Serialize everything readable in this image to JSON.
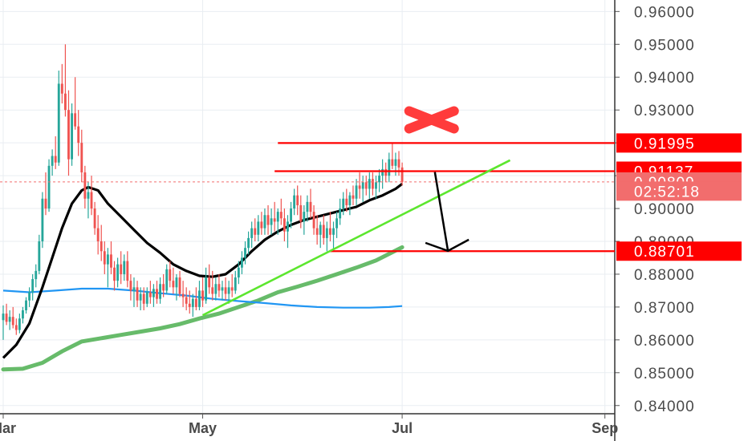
{
  "chart_data": {
    "type": "candlestick",
    "symbol_hidden": true,
    "y_axis": {
      "ticks": [
        "0.96000",
        "0.95000",
        "0.94000",
        "0.93000",
        "0.92000",
        "0.91000",
        "0.90000",
        "0.89000",
        "0.88000",
        "0.87000",
        "0.86000",
        "0.85000",
        "0.84000"
      ],
      "tick_values": [
        0.96,
        0.95,
        0.94,
        0.93,
        0.92,
        0.91,
        0.9,
        0.89,
        0.88,
        0.87,
        0.86,
        0.85,
        0.84
      ],
      "range": [
        0.8375,
        0.9635
      ],
      "side": "right"
    },
    "x_axis": {
      "ticks": [
        "Mar",
        "May",
        "Jul",
        "Sep"
      ],
      "tick_days": [
        0,
        61,
        122,
        184
      ],
      "range_days": [
        0,
        188
      ]
    },
    "grid": true,
    "colors": {
      "up": "#26a69a",
      "down": "#ef5350",
      "ema_black": "#000000",
      "ma_blue": "#2196f3",
      "ma_green": "#4caf50",
      "trendline": "#5ce62e",
      "level_red": "#ff0000",
      "badge_red": "#ff0000",
      "badge_pale": "#f26d6d"
    },
    "price_badges": [
      {
        "label": "0.91995",
        "value": 0.91995,
        "style": "solid"
      },
      {
        "label": "0.91137",
        "value": 0.91137,
        "style": "solid"
      },
      {
        "label": "0.90809",
        "value": 0.90809,
        "style": "pale"
      },
      {
        "label": "02:52:18",
        "value": 0.9053,
        "style": "pale"
      },
      {
        "label": "0.88701",
        "value": 0.88701,
        "style": "solid"
      }
    ],
    "current_price": 0.90809,
    "horizontal_levels": [
      {
        "value": 0.91995,
        "from_day": 84,
        "to_day": 186
      },
      {
        "value": 0.91137,
        "from_day": 83,
        "to_day": 186
      },
      {
        "value": 0.88701,
        "from_day": 100,
        "to_day": 186
      }
    ],
    "trendline": {
      "points": [
        [
          61,
          0.8675
        ],
        [
          155,
          0.9147
        ]
      ]
    },
    "arrow": {
      "from": [
        132,
        0.9111
      ],
      "to": [
        136,
        0.8871
      ]
    },
    "x_marker": {
      "day": 131,
      "value": 0.927
    },
    "ema_black": [
      [
        0,
        0.8545
      ],
      [
        4,
        0.8585
      ],
      [
        8,
        0.865
      ],
      [
        12,
        0.876
      ],
      [
        15,
        0.885
      ],
      [
        18,
        0.894
      ],
      [
        21,
        0.9015
      ],
      [
        24,
        0.9055
      ],
      [
        26,
        0.9065
      ],
      [
        29,
        0.9055
      ],
      [
        32,
        0.9015
      ],
      [
        36,
        0.8975
      ],
      [
        40,
        0.8935
      ],
      [
        44,
        0.8895
      ],
      [
        48,
        0.8865
      ],
      [
        52,
        0.883
      ],
      [
        56,
        0.881
      ],
      [
        60,
        0.8795
      ],
      [
        64,
        0.8792
      ],
      [
        68,
        0.88
      ],
      [
        72,
        0.883
      ],
      [
        76,
        0.887
      ],
      [
        80,
        0.8905
      ],
      [
        84,
        0.893
      ],
      [
        88,
        0.895
      ],
      [
        92,
        0.8965
      ],
      [
        96,
        0.8975
      ],
      [
        100,
        0.8985
      ],
      [
        104,
        0.8995
      ],
      [
        108,
        0.9005
      ],
      [
        112,
        0.9025
      ],
      [
        116,
        0.904
      ],
      [
        120,
        0.906
      ],
      [
        122,
        0.9075
      ]
    ],
    "ma_blue": [
      [
        0,
        0.875
      ],
      [
        8,
        0.8745
      ],
      [
        16,
        0.875
      ],
      [
        24,
        0.8756
      ],
      [
        32,
        0.8756
      ],
      [
        40,
        0.875
      ],
      [
        48,
        0.8742
      ],
      [
        56,
        0.8735
      ],
      [
        64,
        0.8725
      ],
      [
        72,
        0.8718
      ],
      [
        80,
        0.8712
      ],
      [
        88,
        0.8705
      ],
      [
        96,
        0.87
      ],
      [
        104,
        0.8698
      ],
      [
        112,
        0.8698
      ],
      [
        118,
        0.87
      ],
      [
        122,
        0.8703
      ]
    ],
    "ma_green": [
      [
        0,
        0.851
      ],
      [
        6,
        0.8512
      ],
      [
        12,
        0.853
      ],
      [
        18,
        0.8565
      ],
      [
        24,
        0.8595
      ],
      [
        30,
        0.8605
      ],
      [
        36,
        0.8615
      ],
      [
        42,
        0.8625
      ],
      [
        48,
        0.8635
      ],
      [
        54,
        0.8648
      ],
      [
        60,
        0.8665
      ],
      [
        66,
        0.868
      ],
      [
        72,
        0.87
      ],
      [
        78,
        0.872
      ],
      [
        84,
        0.8745
      ],
      [
        90,
        0.8762
      ],
      [
        96,
        0.878
      ],
      [
        102,
        0.88
      ],
      [
        108,
        0.882
      ],
      [
        114,
        0.8842
      ],
      [
        118,
        0.8862
      ],
      [
        122,
        0.8882
      ]
    ],
    "candles": [
      [
        0,
        0.866,
        0.8705,
        0.86,
        0.868
      ],
      [
        1,
        0.868,
        0.871,
        0.8645,
        0.8655
      ],
      [
        2,
        0.8655,
        0.869,
        0.863,
        0.867
      ],
      [
        3,
        0.867,
        0.87,
        0.8635,
        0.8645
      ],
      [
        4,
        0.8645,
        0.8665,
        0.8615,
        0.863
      ],
      [
        5,
        0.863,
        0.868,
        0.862,
        0.8665
      ],
      [
        6,
        0.8665,
        0.87,
        0.865,
        0.869
      ],
      [
        7,
        0.869,
        0.873,
        0.868,
        0.872
      ],
      [
        8,
        0.872,
        0.876,
        0.87,
        0.8745
      ],
      [
        9,
        0.8745,
        0.88,
        0.872,
        0.8785
      ],
      [
        10,
        0.8785,
        0.883,
        0.876,
        0.881
      ],
      [
        11,
        0.881,
        0.892,
        0.88,
        0.89
      ],
      [
        12,
        0.89,
        0.905,
        0.888,
        0.903
      ],
      [
        13,
        0.903,
        0.911,
        0.898,
        0.9
      ],
      [
        14,
        0.9,
        0.915,
        0.899,
        0.913
      ],
      [
        15,
        0.913,
        0.918,
        0.91,
        0.916
      ],
      [
        16,
        0.916,
        0.922,
        0.912,
        0.914
      ],
      [
        17,
        0.914,
        0.942,
        0.913,
        0.938
      ],
      [
        18,
        0.938,
        0.944,
        0.932,
        0.935
      ],
      [
        19,
        0.935,
        0.95,
        0.928,
        0.93
      ],
      [
        20,
        0.93,
        0.936,
        0.91,
        0.915
      ],
      [
        21,
        0.915,
        0.932,
        0.913,
        0.929
      ],
      [
        22,
        0.929,
        0.94,
        0.924,
        0.925
      ],
      [
        23,
        0.925,
        0.93,
        0.916,
        0.92
      ],
      [
        24,
        0.92,
        0.924,
        0.908,
        0.911
      ],
      [
        25,
        0.911,
        0.913,
        0.9,
        0.903
      ],
      [
        26,
        0.903,
        0.908,
        0.897,
        0.905
      ],
      [
        27,
        0.905,
        0.91,
        0.898,
        0.9
      ],
      [
        28,
        0.9,
        0.902,
        0.892,
        0.894
      ],
      [
        29,
        0.894,
        0.898,
        0.886,
        0.89
      ],
      [
        30,
        0.89,
        0.895,
        0.884,
        0.887
      ],
      [
        31,
        0.887,
        0.89,
        0.88,
        0.883
      ],
      [
        32,
        0.883,
        0.888,
        0.876,
        0.886
      ],
      [
        33,
        0.886,
        0.89,
        0.88,
        0.882
      ],
      [
        34,
        0.882,
        0.884,
        0.875,
        0.878
      ],
      [
        35,
        0.878,
        0.885,
        0.876,
        0.883
      ],
      [
        36,
        0.883,
        0.887,
        0.877,
        0.88
      ],
      [
        37,
        0.88,
        0.886,
        0.878,
        0.884
      ],
      [
        38,
        0.884,
        0.887,
        0.876,
        0.878
      ],
      [
        39,
        0.878,
        0.88,
        0.872,
        0.875
      ],
      [
        40,
        0.875,
        0.879,
        0.87,
        0.876
      ],
      [
        41,
        0.876,
        0.878,
        0.87,
        0.872
      ],
      [
        42,
        0.872,
        0.876,
        0.869,
        0.874
      ],
      [
        43,
        0.874,
        0.876,
        0.869,
        0.871
      ],
      [
        44,
        0.871,
        0.876,
        0.87,
        0.8745
      ],
      [
        45,
        0.8745,
        0.878,
        0.871,
        0.873
      ],
      [
        46,
        0.873,
        0.877,
        0.87,
        0.8755
      ],
      [
        47,
        0.8755,
        0.878,
        0.871,
        0.8725
      ],
      [
        48,
        0.8725,
        0.879,
        0.871,
        0.877
      ],
      [
        49,
        0.877,
        0.88,
        0.873,
        0.875
      ],
      [
        50,
        0.875,
        0.883,
        0.874,
        0.8815
      ],
      [
        51,
        0.8815,
        0.884,
        0.876,
        0.878
      ],
      [
        52,
        0.878,
        0.882,
        0.874,
        0.876
      ],
      [
        53,
        0.876,
        0.88,
        0.872,
        0.879
      ],
      [
        54,
        0.879,
        0.881,
        0.873,
        0.874
      ],
      [
        55,
        0.874,
        0.878,
        0.87,
        0.873
      ],
      [
        56,
        0.873,
        0.876,
        0.869,
        0.871
      ],
      [
        57,
        0.871,
        0.875,
        0.868,
        0.87
      ],
      [
        58,
        0.87,
        0.874,
        0.867,
        0.8725
      ],
      [
        59,
        0.8725,
        0.876,
        0.869,
        0.87
      ],
      [
        60,
        0.87,
        0.878,
        0.869,
        0.875
      ],
      [
        61,
        0.875,
        0.879,
        0.87,
        0.872
      ],
      [
        62,
        0.872,
        0.882,
        0.871,
        0.879
      ],
      [
        63,
        0.879,
        0.883,
        0.874,
        0.876
      ],
      [
        64,
        0.876,
        0.881,
        0.872,
        0.874
      ],
      [
        65,
        0.874,
        0.879,
        0.872,
        0.877
      ],
      [
        66,
        0.877,
        0.88,
        0.873,
        0.875
      ],
      [
        67,
        0.875,
        0.878,
        0.872,
        0.876
      ],
      [
        68,
        0.876,
        0.879,
        0.872,
        0.874
      ],
      [
        69,
        0.874,
        0.878,
        0.871,
        0.876
      ],
      [
        70,
        0.876,
        0.88,
        0.873,
        0.875
      ],
      [
        71,
        0.875,
        0.881,
        0.874,
        0.879
      ],
      [
        72,
        0.879,
        0.884,
        0.877,
        0.882
      ],
      [
        73,
        0.882,
        0.887,
        0.88,
        0.885
      ],
      [
        74,
        0.885,
        0.89,
        0.883,
        0.888
      ],
      [
        75,
        0.888,
        0.893,
        0.886,
        0.891
      ],
      [
        76,
        0.891,
        0.896,
        0.888,
        0.894
      ],
      [
        77,
        0.894,
        0.897,
        0.89,
        0.892
      ],
      [
        78,
        0.892,
        0.898,
        0.89,
        0.896
      ],
      [
        79,
        0.896,
        0.899,
        0.892,
        0.894
      ],
      [
        80,
        0.894,
        0.9,
        0.892,
        0.898
      ],
      [
        81,
        0.898,
        0.901,
        0.892,
        0.895
      ],
      [
        82,
        0.895,
        0.9,
        0.892,
        0.897
      ],
      [
        83,
        0.897,
        0.902,
        0.893,
        0.896
      ],
      [
        84,
        0.896,
        0.9,
        0.892,
        0.899
      ],
      [
        85,
        0.899,
        0.903,
        0.895,
        0.897
      ],
      [
        86,
        0.897,
        0.9,
        0.89,
        0.893
      ],
      [
        87,
        0.893,
        0.898,
        0.888,
        0.896
      ],
      [
        88,
        0.896,
        0.902,
        0.894,
        0.9
      ],
      [
        89,
        0.9,
        0.906,
        0.898,
        0.904
      ],
      [
        90,
        0.904,
        0.907,
        0.898,
        0.901
      ],
      [
        91,
        0.901,
        0.904,
        0.894,
        0.896
      ],
      [
        92,
        0.896,
        0.901,
        0.892,
        0.899
      ],
      [
        93,
        0.899,
        0.904,
        0.896,
        0.902
      ],
      [
        94,
        0.902,
        0.906,
        0.897,
        0.899
      ],
      [
        95,
        0.899,
        0.901,
        0.892,
        0.894
      ],
      [
        96,
        0.894,
        0.898,
        0.889,
        0.892
      ],
      [
        97,
        0.892,
        0.896,
        0.888,
        0.895
      ],
      [
        98,
        0.895,
        0.898,
        0.889,
        0.891
      ],
      [
        99,
        0.891,
        0.896,
        0.887,
        0.894
      ],
      [
        100,
        0.894,
        0.899,
        0.89,
        0.892
      ],
      [
        101,
        0.892,
        0.896,
        0.887,
        0.894
      ],
      [
        102,
        0.894,
        0.899,
        0.891,
        0.897
      ],
      [
        103,
        0.897,
        0.903,
        0.895,
        0.9
      ],
      [
        104,
        0.9,
        0.905,
        0.898,
        0.903
      ],
      [
        105,
        0.903,
        0.906,
        0.899,
        0.901
      ],
      [
        106,
        0.901,
        0.905,
        0.898,
        0.904
      ],
      [
        107,
        0.904,
        0.907,
        0.901,
        0.903
      ],
      [
        108,
        0.903,
        0.909,
        0.901,
        0.907
      ],
      [
        109,
        0.907,
        0.911,
        0.903,
        0.906
      ],
      [
        110,
        0.906,
        0.91,
        0.902,
        0.908
      ],
      [
        111,
        0.908,
        0.91,
        0.904,
        0.906
      ],
      [
        112,
        0.906,
        0.911,
        0.903,
        0.909
      ],
      [
        113,
        0.909,
        0.911,
        0.904,
        0.906
      ],
      [
        114,
        0.906,
        0.91,
        0.903,
        0.908
      ],
      [
        115,
        0.908,
        0.912,
        0.905,
        0.91
      ],
      [
        116,
        0.91,
        0.915,
        0.906,
        0.912
      ],
      [
        117,
        0.912,
        0.914,
        0.908,
        0.91
      ],
      [
        118,
        0.91,
        0.917,
        0.908,
        0.915
      ],
      [
        119,
        0.915,
        0.92,
        0.912,
        0.913
      ],
      [
        120,
        0.913,
        0.917,
        0.91,
        0.915
      ],
      [
        121,
        0.915,
        0.9175,
        0.91,
        0.9125
      ],
      [
        122,
        0.9125,
        0.914,
        0.907,
        0.9081
      ]
    ]
  }
}
